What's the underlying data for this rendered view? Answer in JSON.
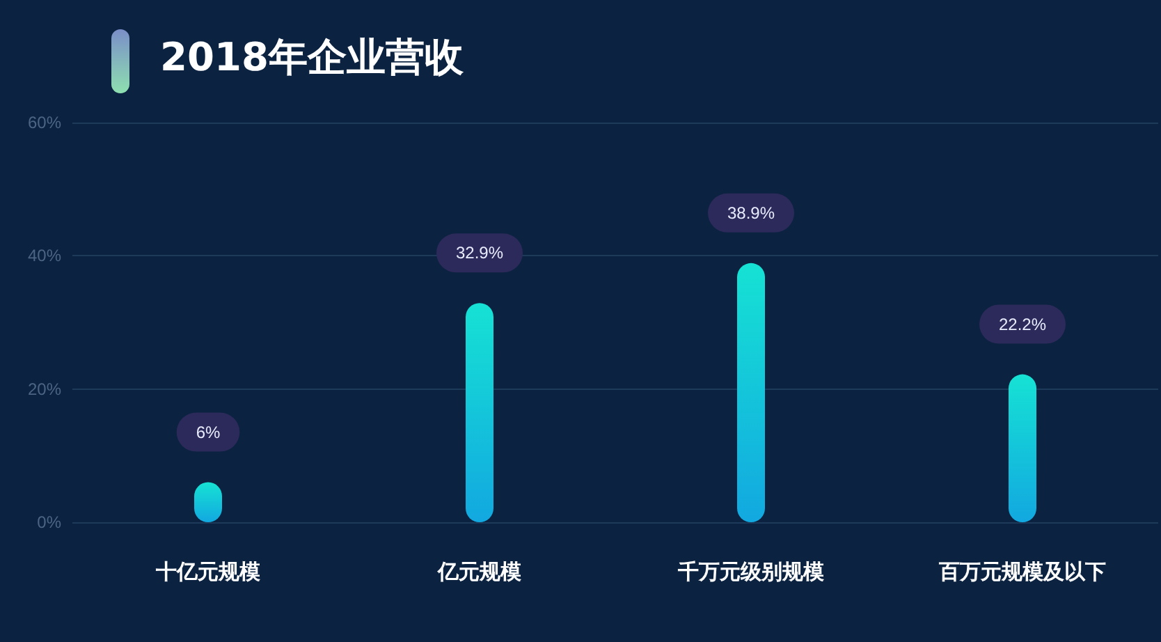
{
  "chart_data": {
    "type": "bar",
    "title": "2018年企业营收",
    "categories": [
      "十亿元规模",
      "亿元规模",
      "千万元级别规模",
      "百万元规模及以下"
    ],
    "values": [
      6,
      32.9,
      38.9,
      22.2
    ],
    "value_labels": [
      "6%",
      "32.9%",
      "38.9%",
      "22.2%"
    ],
    "color": "#16e2d4",
    "ylim": [
      0,
      60
    ],
    "yticks": [
      {
        "value": 0,
        "label": "0%"
      },
      {
        "value": 20,
        "label": "20%"
      },
      {
        "value": 40,
        "label": "40%"
      },
      {
        "value": 60,
        "label": "60%"
      }
    ],
    "grid": "y"
  }
}
